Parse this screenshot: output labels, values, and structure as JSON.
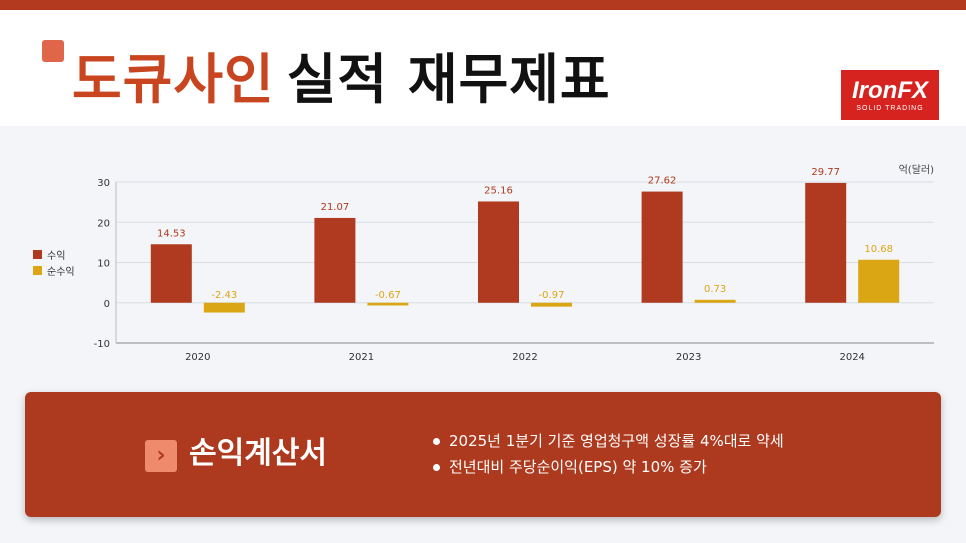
{
  "header": {
    "company": "도큐사인",
    "title_rest": "실적 재무제표",
    "logo_main": "IronFX",
    "logo_sub": "SOLID TRADING"
  },
  "chart_data": {
    "type": "bar",
    "categories": [
      "2020",
      "2021",
      "2022",
      "2023",
      "2024"
    ],
    "series": [
      {
        "name": "수익",
        "color": "#b03a1f",
        "values": [
          14.53,
          21.07,
          25.16,
          27.62,
          29.77
        ]
      },
      {
        "name": "순수익",
        "color": "#dba614",
        "values": [
          -2.43,
          -0.67,
          -0.97,
          0.73,
          10.68
        ]
      }
    ],
    "unit_label": "억(달러)",
    "ylim": [
      -10,
      30
    ],
    "yticks": [
      -10,
      0,
      10,
      20,
      30
    ],
    "grid": true,
    "legend_position": "left"
  },
  "summary": {
    "title": "손익계산서",
    "icon": "chevron-right-icon",
    "bullets": [
      "2025년 1분기 기준 영업청구액 성장률 4%대로 약세",
      "전년대비 주당순이익(EPS) 약 10% 증가"
    ]
  }
}
